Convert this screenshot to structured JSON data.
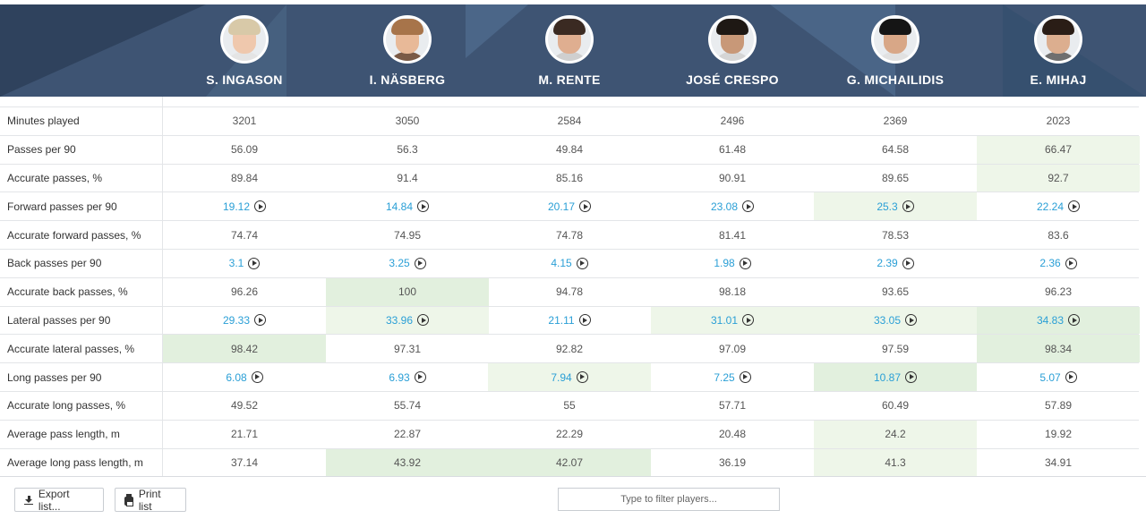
{
  "players": [
    {
      "name": "S. INGASON",
      "hair": "#d8c9a8",
      "skin": "#efc8ad",
      "shirt": "#e4e4e4"
    },
    {
      "name": "I. NÄSBERG",
      "hair": "#a7744a",
      "skin": "#e8b998",
      "shirt": "#7a5a46"
    },
    {
      "name": "M. RENTE",
      "hair": "#3a2a22",
      "skin": "#dfae90",
      "shirt": "#cfcfcf"
    },
    {
      "name": "JOSÉ CRESPO",
      "hair": "#1e1814",
      "skin": "#c89878",
      "shirt": "#d5d5d5"
    },
    {
      "name": "G. MICHAILIDIS",
      "hair": "#151515",
      "skin": "#d8a787",
      "shirt": "#e1e1e1"
    },
    {
      "name": "E. MIHAJ",
      "hair": "#2a1d16",
      "skin": "#dcae8f",
      "shirt": "#6f6f6f"
    }
  ],
  "rows": [
    {
      "label": "Minutes played",
      "cells": [
        {
          "v": "3201"
        },
        {
          "v": "3050"
        },
        {
          "v": "2584"
        },
        {
          "v": "2496"
        },
        {
          "v": "2369"
        },
        {
          "v": "2023"
        }
      ]
    },
    {
      "label": "Passes per 90",
      "cells": [
        {
          "v": "56.09"
        },
        {
          "v": "56.3"
        },
        {
          "v": "49.84"
        },
        {
          "v": "61.48"
        },
        {
          "v": "64.58"
        },
        {
          "v": "66.47",
          "hl": "g1"
        }
      ]
    },
    {
      "label": "Accurate passes, %",
      "cells": [
        {
          "v": "89.84"
        },
        {
          "v": "91.4"
        },
        {
          "v": "85.16"
        },
        {
          "v": "90.91"
        },
        {
          "v": "89.65"
        },
        {
          "v": "92.7",
          "hl": "g1"
        }
      ]
    },
    {
      "label": "Forward passes per 90",
      "cells": [
        {
          "v": "19.12",
          "link": true
        },
        {
          "v": "14.84",
          "link": true
        },
        {
          "v": "20.17",
          "link": true
        },
        {
          "v": "23.08",
          "link": true
        },
        {
          "v": "25.3",
          "link": true,
          "hl": "g1"
        },
        {
          "v": "22.24",
          "link": true
        }
      ]
    },
    {
      "label": "Accurate forward passes, %",
      "cells": [
        {
          "v": "74.74"
        },
        {
          "v": "74.95"
        },
        {
          "v": "74.78"
        },
        {
          "v": "81.41"
        },
        {
          "v": "78.53"
        },
        {
          "v": "83.6"
        }
      ]
    },
    {
      "label": "Back passes per 90",
      "cells": [
        {
          "v": "3.1",
          "link": true
        },
        {
          "v": "3.25",
          "link": true
        },
        {
          "v": "4.15",
          "link": true
        },
        {
          "v": "1.98",
          "link": true
        },
        {
          "v": "2.39",
          "link": true
        },
        {
          "v": "2.36",
          "link": true
        }
      ]
    },
    {
      "label": "Accurate back passes, %",
      "cells": [
        {
          "v": "96.26"
        },
        {
          "v": "100",
          "hl": "g2"
        },
        {
          "v": "94.78"
        },
        {
          "v": "98.18"
        },
        {
          "v": "93.65"
        },
        {
          "v": "96.23"
        }
      ]
    },
    {
      "label": "Lateral passes per 90",
      "cells": [
        {
          "v": "29.33",
          "link": true
        },
        {
          "v": "33.96",
          "link": true,
          "hl": "g1"
        },
        {
          "v": "21.11",
          "link": true
        },
        {
          "v": "31.01",
          "link": true,
          "hl": "g1"
        },
        {
          "v": "33.05",
          "link": true,
          "hl": "g1"
        },
        {
          "v": "34.83",
          "link": true,
          "hl": "g2"
        }
      ]
    },
    {
      "label": "Accurate lateral passes, %",
      "cells": [
        {
          "v": "98.42",
          "hl": "g2"
        },
        {
          "v": "97.31"
        },
        {
          "v": "92.82"
        },
        {
          "v": "97.09"
        },
        {
          "v": "97.59"
        },
        {
          "v": "98.34",
          "hl": "g2"
        }
      ]
    },
    {
      "label": "Long passes per 90",
      "cells": [
        {
          "v": "6.08",
          "link": true
        },
        {
          "v": "6.93",
          "link": true
        },
        {
          "v": "7.94",
          "link": true,
          "hl": "g1"
        },
        {
          "v": "7.25",
          "link": true
        },
        {
          "v": "10.87",
          "link": true,
          "hl": "g2"
        },
        {
          "v": "5.07",
          "link": true
        }
      ]
    },
    {
      "label": "Accurate long passes, %",
      "cells": [
        {
          "v": "49.52"
        },
        {
          "v": "55.74"
        },
        {
          "v": "55"
        },
        {
          "v": "57.71"
        },
        {
          "v": "60.49"
        },
        {
          "v": "57.89"
        }
      ]
    },
    {
      "label": "Average pass length, m",
      "cells": [
        {
          "v": "21.71"
        },
        {
          "v": "22.87"
        },
        {
          "v": "22.29"
        },
        {
          "v": "20.48"
        },
        {
          "v": "24.2",
          "hl": "g1"
        },
        {
          "v": "19.92"
        }
      ]
    },
    {
      "label": "Average long pass length, m",
      "cells": [
        {
          "v": "37.14"
        },
        {
          "v": "43.92",
          "hl": "g2"
        },
        {
          "v": "42.07",
          "hl": "g2"
        },
        {
          "v": "36.19"
        },
        {
          "v": "41.3",
          "hl": "g1"
        },
        {
          "v": "34.91"
        }
      ]
    }
  ],
  "footer": {
    "export_label": "Export list...",
    "print_label": "Print list",
    "filter_placeholder": "Type to filter players..."
  }
}
